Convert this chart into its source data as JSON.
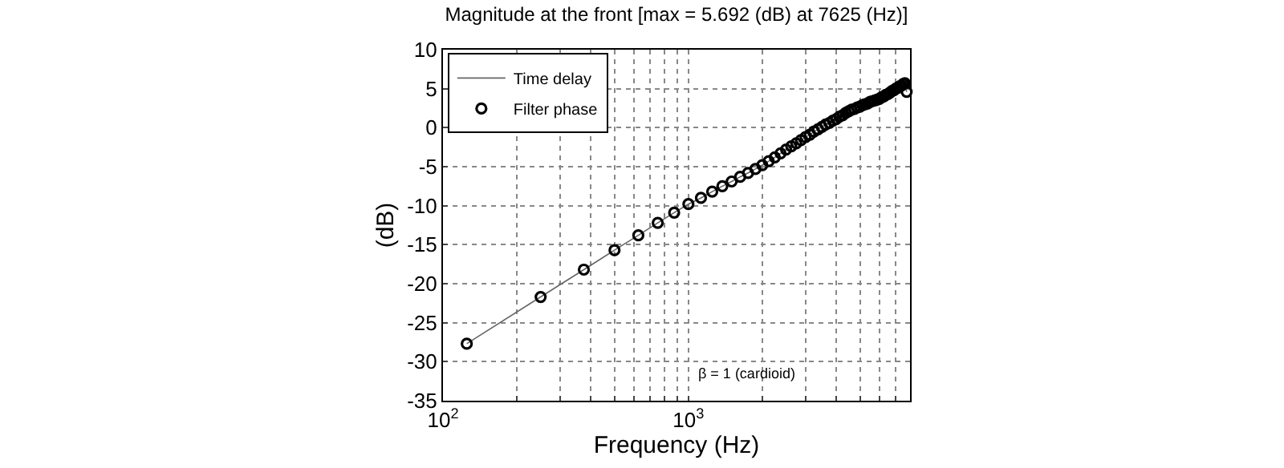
{
  "chart_data": {
    "type": "scatter",
    "title": "Magnitude at the front [max = 5.692 (dB) at 7625 (Hz)]",
    "xlabel": "Frequency (Hz)",
    "ylabel": "(dB)",
    "annotations": [
      "β = 1 (cardioid)"
    ],
    "log": "x",
    "grid": true,
    "legend": "top left",
    "xlim": [
      100,
      8000
    ],
    "ylim": [
      -35,
      10
    ],
    "xticks": [
      {
        "value": 100,
        "label": "10$^{2}$"
      },
      {
        "value": 200,
        "label": null
      },
      {
        "value": 300,
        "label": null
      },
      {
        "value": 400,
        "label": null
      },
      {
        "value": 500,
        "label": null
      },
      {
        "value": 600,
        "label": null
      },
      {
        "value": 700,
        "label": null
      },
      {
        "value": 800,
        "label": null
      },
      {
        "value": 900,
        "label": null
      },
      {
        "value": 1000,
        "label": "10$^{3}$"
      },
      {
        "value": 2000,
        "label": null
      },
      {
        "value": 3000,
        "label": null
      },
      {
        "value": 4000,
        "label": null
      },
      {
        "value": 5000,
        "label": null
      },
      {
        "value": 6000,
        "label": null
      },
      {
        "value": 7000,
        "label": null
      }
    ],
    "yticks": [
      -35,
      -30,
      -25,
      -20,
      -15,
      -10,
      -5,
      0,
      5,
      10
    ],
    "x": [
      125,
      250,
      375,
      500,
      625,
      750,
      875,
      1000,
      1125,
      1250,
      1375,
      1500,
      1625,
      1750,
      1875,
      2000,
      2125,
      2250,
      2375,
      2500,
      2625,
      2750,
      2875,
      3000,
      3125,
      3250,
      3375,
      3500,
      3625,
      3750,
      3875,
      4000,
      4125,
      4250,
      4375,
      4500,
      4625,
      4750,
      4875,
      5000,
      5125,
      5250,
      5375,
      5500,
      5625,
      5750,
      5875,
      6000,
      6125,
      6250,
      6375,
      6500,
      6625,
      6750,
      6875,
      7000,
      7125,
      7250,
      7375,
      7500,
      7625,
      7750
    ],
    "series": [
      {
        "name": "Time delay",
        "type": "line",
        "marker": "none",
        "line_style": "solid",
        "color": "#666666",
        "values": [
          -27.7,
          -21.7,
          -18.2,
          -15.7,
          -13.8,
          -12.2,
          -10.9,
          -9.8,
          -9.0,
          -8.2,
          -7.5,
          -6.9,
          -6.3,
          -5.8,
          -5.3,
          -4.8,
          -4.3,
          -3.8,
          -3.3,
          -2.8,
          -2.4,
          -2.0,
          -1.6,
          -1.2,
          -0.9,
          -0.5,
          -0.2,
          0.1,
          0.4,
          0.6,
          0.9,
          1.1,
          1.4,
          1.6,
          1.9,
          2.1,
          2.3,
          2.4,
          2.6,
          2.7,
          2.9,
          3.0,
          3.1,
          3.3,
          3.4,
          3.5,
          3.6,
          3.7,
          3.9,
          4.0,
          4.2,
          4.3,
          4.5,
          4.7,
          4.8,
          5.0,
          5.1,
          5.3,
          5.4,
          5.6,
          5.7,
          4.6
        ]
      },
      {
        "name": "Filter phase",
        "marker": "circle",
        "color": "#000000",
        "values": [
          -27.7,
          -21.7,
          -18.2,
          -15.7,
          -13.8,
          -12.2,
          -10.9,
          -9.8,
          -9.0,
          -8.2,
          -7.5,
          -6.9,
          -6.3,
          -5.8,
          -5.3,
          -4.8,
          -4.3,
          -3.8,
          -3.3,
          -2.8,
          -2.4,
          -2.0,
          -1.6,
          -1.2,
          -0.9,
          -0.5,
          -0.2,
          0.1,
          0.4,
          0.6,
          0.9,
          1.1,
          1.4,
          1.6,
          1.9,
          2.1,
          2.3,
          2.4,
          2.6,
          2.7,
          2.9,
          3.0,
          3.1,
          3.3,
          3.4,
          3.5,
          3.6,
          3.7,
          3.9,
          4.0,
          4.2,
          4.3,
          4.5,
          4.7,
          4.8,
          5.0,
          5.1,
          5.3,
          5.4,
          5.6,
          5.7,
          4.6
        ]
      }
    ]
  }
}
